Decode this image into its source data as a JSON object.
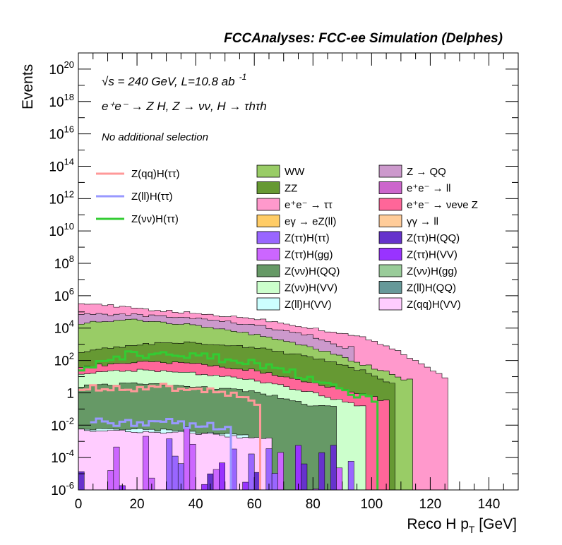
{
  "header": "FCCAnalyses: FCC-ee Simulation (Delphes)",
  "annotations": {
    "sqrt_s": "√s = 240 GeV, L=10.8 ab",
    "lumi_exp": "-1",
    "process": "e⁺e⁻ → Z H, Z → νν, H → τhτh",
    "selection": "No additional selection"
  },
  "chart_data": {
    "type": "histogram",
    "xlabel": "Reco H p_T [GeV]",
    "ylabel": "Events",
    "xlim": [
      0,
      150
    ],
    "ylim_log10": [
      -6,
      21
    ],
    "yscale": "log",
    "x_ticks": [
      0,
      20,
      40,
      60,
      80,
      100,
      120,
      140
    ],
    "y_ticks": [
      "10^-6",
      "10^-4",
      "10^-2",
      "1",
      "10^2",
      "10^4",
      "10^6",
      "10^8",
      "10^10",
      "10^12",
      "10^14",
      "10^16",
      "10^18",
      "10^20"
    ],
    "bin_width_gev": 2,
    "stacked_envelopes_log10": [
      {
        "name": "Z(qq)H(VV)",
        "color": "#ffccff",
        "upper": [
          [
            0,
            -2.3
          ],
          [
            20,
            -2.4
          ],
          [
            40,
            -2.5
          ],
          [
            60,
            -2.8
          ],
          [
            66,
            -6
          ]
        ]
      },
      {
        "name": "Z(ll)H(VV)",
        "color": "#ccffff",
        "upper": [
          [
            0,
            -2.2
          ],
          [
            30,
            -2.3
          ],
          [
            54,
            -2.6
          ],
          [
            58,
            -6
          ]
        ]
      },
      {
        "name": "Z(νν)H(QQ)",
        "color": "#669966",
        "upper": [
          [
            0,
            0.4
          ],
          [
            20,
            0.6
          ],
          [
            40,
            0.4
          ],
          [
            60,
            0.1
          ],
          [
            80,
            -0.8
          ],
          [
            88,
            -6
          ]
        ]
      },
      {
        "name": "Z(νν)H(gg)",
        "color": "#99cc99",
        "upper": [
          [
            0,
            -1
          ],
          [
            30,
            -1.2
          ],
          [
            60,
            -1.5
          ],
          [
            78,
            -2
          ],
          [
            82,
            -6
          ]
        ]
      },
      {
        "name": "Z(νν)H(VV)",
        "color": "#ccffcc",
        "upper": [
          [
            0,
            1.2
          ],
          [
            20,
            1.4
          ],
          [
            40,
            1.2
          ],
          [
            60,
            0.8
          ],
          [
            80,
            0
          ],
          [
            96,
            -0.8
          ],
          [
            98,
            -6
          ]
        ]
      },
      {
        "name": "e⁺e⁻ → ν_eν_e Z",
        "color": "#ff6699",
        "upper": [
          [
            0,
            1.6
          ],
          [
            20,
            1.9
          ],
          [
            40,
            1.8
          ],
          [
            60,
            1.4
          ],
          [
            80,
            0.6
          ],
          [
            100,
            -0.2
          ],
          [
            104,
            -0.5
          ],
          [
            106,
            -6
          ]
        ]
      },
      {
        "name": "ZZ",
        "color": "#669933",
        "upper": [
          [
            0,
            2.5
          ],
          [
            20,
            3.0
          ],
          [
            40,
            3.1
          ],
          [
            60,
            2.8
          ],
          [
            80,
            2.2
          ],
          [
            100,
            1.2
          ],
          [
            106,
            0.6
          ],
          [
            108,
            -6
          ]
        ]
      },
      {
        "name": "WW",
        "color": "#99cc66",
        "upper": [
          [
            0,
            4.3
          ],
          [
            20,
            4.5
          ],
          [
            40,
            4.2
          ],
          [
            60,
            3.6
          ],
          [
            80,
            2.8
          ],
          [
            100,
            1.6
          ],
          [
            112,
            0.8
          ],
          [
            114,
            -6
          ]
        ]
      },
      {
        "name": "Z → QQ",
        "color": "#cc99cc",
        "upper": [
          [
            0,
            4.9
          ],
          [
            20,
            4.8
          ],
          [
            40,
            4.6
          ],
          [
            60,
            4.2
          ],
          [
            80,
            3.5
          ],
          [
            90,
            2.8
          ],
          [
            94,
            -6
          ]
        ]
      },
      {
        "name": "e⁺e⁻ → ττ",
        "color": "#ff99cc",
        "upper": [
          [
            0,
            5.6
          ],
          [
            20,
            5.2
          ],
          [
            40,
            4.9
          ],
          [
            60,
            4.6
          ],
          [
            80,
            4.0
          ],
          [
            100,
            3.3
          ],
          [
            110,
            2.5
          ],
          [
            120,
            1.5
          ],
          [
            124,
            1.0
          ],
          [
            126,
            -6
          ]
        ]
      }
    ],
    "signal_lines_log10": [
      {
        "name": "Z(qq)H(ττ)",
        "color": "#ff9999",
        "points": [
          [
            0,
            0.3
          ],
          [
            10,
            0.35
          ],
          [
            20,
            0.3
          ],
          [
            30,
            0.4
          ],
          [
            40,
            0.3
          ],
          [
            50,
            0.1
          ],
          [
            60,
            -0.6
          ],
          [
            62,
            -6
          ]
        ]
      },
      {
        "name": "Z(ll)H(ττ)",
        "color": "#9999ff",
        "points": [
          [
            4,
            -1.8
          ],
          [
            10,
            -1.8
          ],
          [
            20,
            -1.9
          ],
          [
            30,
            -1.8
          ],
          [
            40,
            -2
          ],
          [
            50,
            -2.1
          ],
          [
            52,
            -6
          ]
        ]
      },
      {
        "name": "Z(νν)H(ττ)",
        "color": "#33cc33",
        "points": [
          [
            0,
            1.4
          ],
          [
            10,
            2.2
          ],
          [
            20,
            2.4
          ],
          [
            30,
            2.4
          ],
          [
            40,
            2.3
          ],
          [
            50,
            2.1
          ],
          [
            60,
            1.8
          ],
          [
            70,
            1.4
          ],
          [
            80,
            0.9
          ],
          [
            90,
            0.2
          ],
          [
            96,
            -0.2
          ],
          [
            100,
            -0.5
          ],
          [
            102,
            -6
          ]
        ]
      }
    ],
    "legend_signals": [
      {
        "label": "Z(qq)H(ττ)",
        "color": "#ff9999"
      },
      {
        "label": "Z(ll)H(ττ)",
        "color": "#9999ff"
      },
      {
        "label": "Z(νν)H(ττ)",
        "color": "#33cc33"
      }
    ],
    "legend_backgrounds": [
      {
        "label": "WW",
        "color": "#99cc66"
      },
      {
        "label": "Z → QQ",
        "color": "#cc99cc"
      },
      {
        "label": "ZZ",
        "color": "#669933"
      },
      {
        "label": "e⁺e⁻ → ll",
        "color": "#cc66cc"
      },
      {
        "label": "e⁺e⁻ → ττ",
        "color": "#ff99cc"
      },
      {
        "label": "e⁺e⁻ → νeνe Z",
        "color": "#ff6699"
      },
      {
        "label": "eγ → eZ(ll)",
        "color": "#ffcc66"
      },
      {
        "label": "γγ → ll",
        "color": "#ffcc99"
      },
      {
        "label": "Z(ττ)H(ττ)",
        "color": "#9966ff"
      },
      {
        "label": "Z(ττ)H(QQ)",
        "color": "#6633cc"
      },
      {
        "label": "Z(ττ)H(gg)",
        "color": "#cc66ff"
      },
      {
        "label": "Z(ττ)H(VV)",
        "color": "#9933ff"
      },
      {
        "label": "Z(νν)H(QQ)",
        "color": "#669966"
      },
      {
        "label": "Z(νν)H(gg)",
        "color": "#99cc99"
      },
      {
        "label": "Z(νν)H(VV)",
        "color": "#ccffcc"
      },
      {
        "label": "Z(ll)H(QQ)",
        "color": "#669999"
      },
      {
        "label": "Z(ll)H(VV)",
        "color": "#ccffff"
      },
      {
        "label": "Z(qq)H(VV)",
        "color": "#ffccff"
      }
    ]
  }
}
